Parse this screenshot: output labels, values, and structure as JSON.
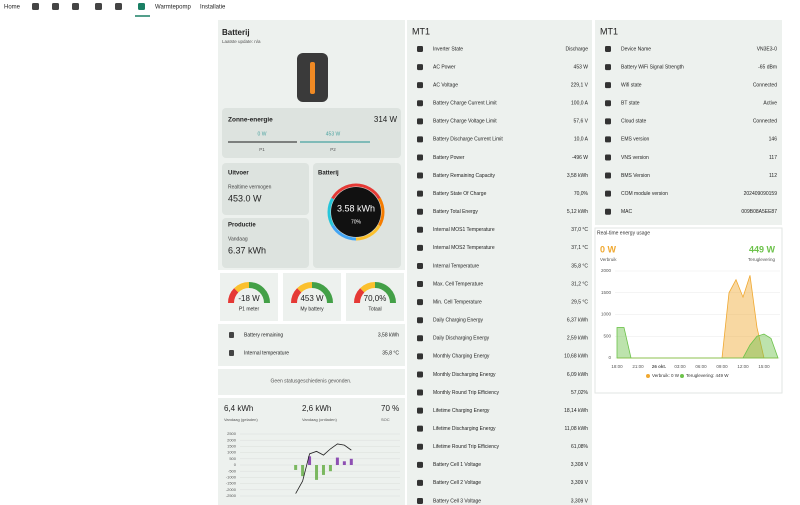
{
  "nav": {
    "items": [
      "Home",
      "Warmtepomp",
      "Installatie"
    ]
  },
  "battery_card": {
    "title": "Batterij",
    "subtitle": "Laatste update: n/a"
  },
  "solar": {
    "title": "Zonne-energie",
    "total": "314 W",
    "p1_value": "0 W",
    "p1_label": "P1",
    "p2_value": "453 W",
    "p2_label": "P2"
  },
  "output": {
    "title": "Uitvoer",
    "label": "Realtime vermogen",
    "value": "453.0 W"
  },
  "production": {
    "title": "Productie",
    "label": "Vandaag",
    "value": "6.37 kWh"
  },
  "battery_ring": {
    "title": "Batterij",
    "value": "3.58 kWh",
    "percent": "70%"
  },
  "gauges": [
    {
      "value": "-18 W",
      "label": "P1 meter"
    },
    {
      "value": "453 W",
      "label": "My battery"
    },
    {
      "value": "70,0%",
      "label": "Totaal"
    }
  ],
  "entities": [
    {
      "label": "Battery remaining",
      "value": "3,58 kWh"
    },
    {
      "label": "Internal temperature",
      "value": "35,8 °C"
    }
  ],
  "status": "Geen statusgeschiedenis gevonden.",
  "history": {
    "stats": [
      {
        "value": "6,4 kWh",
        "label": "Vandaag (geladen)"
      },
      {
        "value": "2,6 kWh",
        "label": "Vandaag (ontladen)"
      },
      {
        "value": "70 %",
        "label": "SOC"
      }
    ],
    "ylim": [
      -2500,
      2500
    ],
    "yticks": [
      2500,
      2000,
      1500,
      1000,
      500,
      0,
      -500,
      -1000,
      -1500,
      -2000,
      -2500
    ],
    "line_color": "#222222",
    "positive_color": "#8e4fb3",
    "negative_color": "#7bb860",
    "line": [
      null,
      null,
      null,
      null,
      null,
      null,
      null,
      null,
      -2300,
      -1300,
      900,
      1100,
      800,
      1300,
      1700,
      1600,
      1200,
      null,
      null,
      null,
      null,
      null,
      null,
      null
    ],
    "bars": [
      null,
      null,
      null,
      null,
      null,
      null,
      null,
      null,
      -400,
      -900,
      700,
      -1200,
      -800,
      -500,
      600,
      300,
      500,
      null,
      null,
      null,
      null,
      null,
      null,
      null
    ]
  },
  "mt1_left": {
    "title": "MT1",
    "rows": [
      {
        "label": "Inverter State",
        "value": "Discharge"
      },
      {
        "label": "AC Power",
        "value": "453 W"
      },
      {
        "label": "AC Voltage",
        "value": "229,1 V"
      },
      {
        "label": "Battery Charge Current Limit",
        "value": "100,0 A"
      },
      {
        "label": "Battery Charge Voltage Limit",
        "value": "57,6 V"
      },
      {
        "label": "Battery Discharge Current Limit",
        "value": "10,0 A"
      },
      {
        "label": "Battery Power",
        "value": "-496 W"
      },
      {
        "label": "Battery Remaining Capacity",
        "value": "3,58 kWh"
      },
      {
        "label": "Battery State Of Charge",
        "value": "70,0%"
      },
      {
        "label": "Battery Total Energy",
        "value": "5,12 kWh"
      },
      {
        "label": "Internal MOS1 Temperature",
        "value": "37,0 °C"
      },
      {
        "label": "Internal MOS2 Temperature",
        "value": "37,1 °C"
      },
      {
        "label": "Internal Temperature",
        "value": "35,8 °C"
      },
      {
        "label": "Max. Cell Temperature",
        "value": "31,2 °C"
      },
      {
        "label": "Min. Cell Temperature",
        "value": "29,5 °C"
      },
      {
        "label": "Daily Charging Energy",
        "value": "6,37 kWh"
      },
      {
        "label": "Daily Discharging Energy",
        "value": "2,59 kWh"
      },
      {
        "label": "Monthly Charging Energy",
        "value": "10,68 kWh"
      },
      {
        "label": "Monthly Discharging Energy",
        "value": "6,09 kWh"
      },
      {
        "label": "Monthly Round Trip Efficiency",
        "value": "57,02%"
      },
      {
        "label": "Lifetime Charging Energy",
        "value": "18,14 kWh"
      },
      {
        "label": "Lifetime Discharging Energy",
        "value": "11,08 kWh"
      },
      {
        "label": "Lifetime Round Trip Efficiency",
        "value": "61,08%"
      },
      {
        "label": "Battery Cell 1 Voltage",
        "value": "3,308 V"
      },
      {
        "label": "Battery Cell 2 Voltage",
        "value": "3,309 V"
      },
      {
        "label": "Battery Cell 3 Voltage",
        "value": "3,309 V"
      }
    ]
  },
  "mt1_right": {
    "title": "MT1",
    "rows": [
      {
        "label": "Device Name",
        "value": "VN3E3-0"
      },
      {
        "label": "Battery WiFi Signal Strength",
        "value": "-65 dBm"
      },
      {
        "label": "Wifi state",
        "value": "Connected"
      },
      {
        "label": "BT state",
        "value": "Active"
      },
      {
        "label": "Cloud state",
        "value": "Connected"
      },
      {
        "label": "EMS version",
        "value": "146"
      },
      {
        "label": "VNS version",
        "value": "117"
      },
      {
        "label": "BMS Version",
        "value": "112"
      },
      {
        "label": "COM module version",
        "value": "202409090159"
      },
      {
        "label": "MAC",
        "value": "009B08A5EE87"
      }
    ]
  },
  "energy_chart": {
    "type": "area",
    "title": "Real-time energy usage",
    "headline": [
      {
        "value": "0 W",
        "label": "Verbruik"
      },
      {
        "value": "449 W",
        "label": "Teruglevering"
      }
    ],
    "categories": [
      "18:00",
      null,
      null,
      "21:00",
      null,
      null,
      "26 okt.",
      null,
      null,
      "03:00",
      null,
      null,
      "06:00",
      null,
      null,
      "09:00",
      null,
      null,
      "12:00",
      null,
      null,
      "15:00",
      null,
      null
    ],
    "ylim": [
      0,
      2000
    ],
    "yticks": [
      0,
      500,
      1000,
      1500,
      2000
    ],
    "legend": [
      "Verbruik: 0 W",
      "Teruglevering: 449 W"
    ],
    "series": [
      {
        "name": "Verbruik",
        "color": "#f0a830",
        "values": [
          0,
          0,
          0,
          0,
          0,
          0,
          0,
          0,
          0,
          0,
          0,
          0,
          0,
          0,
          0,
          0,
          1500,
          1800,
          1400,
          1900,
          700,
          0,
          0,
          0
        ]
      },
      {
        "name": "Teruglevering",
        "color": "#6cc24a",
        "values": [
          700,
          700,
          0,
          0,
          0,
          0,
          0,
          0,
          0,
          0,
          0,
          0,
          0,
          0,
          0,
          0,
          0,
          0,
          0,
          300,
          500,
          550,
          450,
          0
        ]
      }
    ]
  }
}
